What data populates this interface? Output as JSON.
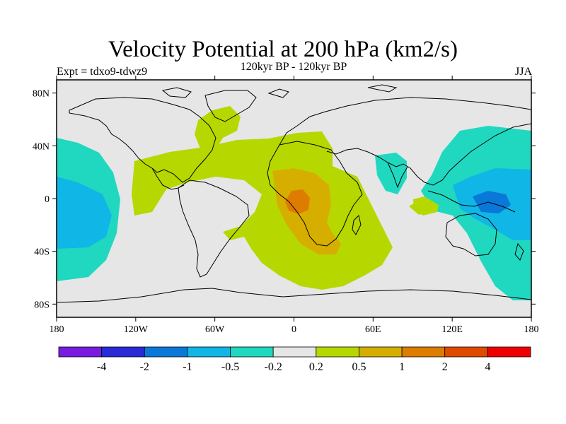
{
  "title": "Velocity Potential at 200 hPa (km2/s)",
  "subtitle": "120kyr BP - 120kyr BP",
  "expt_label": "Expt = tdxo9-tdwz9",
  "season": "JJA",
  "axes": {
    "lat_ticks": [
      {
        "value": 80,
        "label": "80N"
      },
      {
        "value": 40,
        "label": "40N"
      },
      {
        "value": 0,
        "label": "0"
      },
      {
        "value": -40,
        "label": "40S"
      },
      {
        "value": -80,
        "label": "80S"
      }
    ],
    "lon_ticks": [
      {
        "value": -180,
        "label": "180"
      },
      {
        "value": -120,
        "label": "120W"
      },
      {
        "value": -60,
        "label": "60W"
      },
      {
        "value": 0,
        "label": "0"
      },
      {
        "value": 60,
        "label": "60E"
      },
      {
        "value": 120,
        "label": "120E"
      },
      {
        "value": 180,
        "label": "180"
      }
    ],
    "lon_range": [
      -180,
      180
    ],
    "lat_range": [
      -90,
      90
    ]
  },
  "colorbar": {
    "colors": [
      "#7a1be0",
      "#2a2ad8",
      "#0a78d8",
      "#10b6e6",
      "#20d8c0",
      "#e6e6e6",
      "#b6d800",
      "#d6ae00",
      "#de7c00",
      "#e04a00",
      "#ee0000"
    ],
    "labels": [
      "-4",
      "-2",
      "-1",
      "-0.5",
      "-0.2",
      "0.2",
      "0.5",
      "1",
      "2",
      "4"
    ]
  }
}
